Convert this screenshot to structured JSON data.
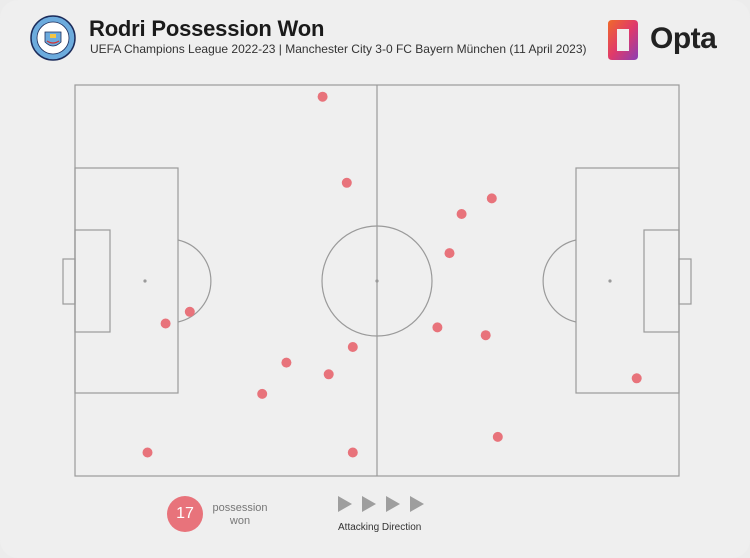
{
  "header": {
    "title": "Rodri Possession Won",
    "subtitle": "UEFA Champions League 2022-23 | Manchester City 3-0 FC Bayern München (11 April 2023)",
    "badge_text": "MANCHESTER CITY",
    "brand": "Opta"
  },
  "colors": {
    "point": "#e8737b",
    "pitch_line": "#9a9a9a",
    "badge_blue": "#6cabdd",
    "arrow": "#9e9e9e"
  },
  "chart_data": {
    "type": "scatter",
    "title": "Rodri Possession Won",
    "xlim": [
      0,
      100
    ],
    "ylim": [
      0,
      100
    ],
    "attacking_direction": "left-to-right",
    "points": [
      {
        "x": 41,
        "y": 97
      },
      {
        "x": 45,
        "y": 75
      },
      {
        "x": 69,
        "y": 71
      },
      {
        "x": 64,
        "y": 67
      },
      {
        "x": 62,
        "y": 57
      },
      {
        "x": 19,
        "y": 42
      },
      {
        "x": 15,
        "y": 39
      },
      {
        "x": 60,
        "y": 38
      },
      {
        "x": 68,
        "y": 36
      },
      {
        "x": 46,
        "y": 33
      },
      {
        "x": 35,
        "y": 29
      },
      {
        "x": 42,
        "y": 26
      },
      {
        "x": 93,
        "y": 25
      },
      {
        "x": 31,
        "y": 21
      },
      {
        "x": 70,
        "y": 10
      },
      {
        "x": 12,
        "y": 6
      },
      {
        "x": 46,
        "y": 6
      }
    ]
  },
  "legend": {
    "count": "17",
    "count_label": "possession won",
    "direction_label": "Attacking Direction"
  }
}
